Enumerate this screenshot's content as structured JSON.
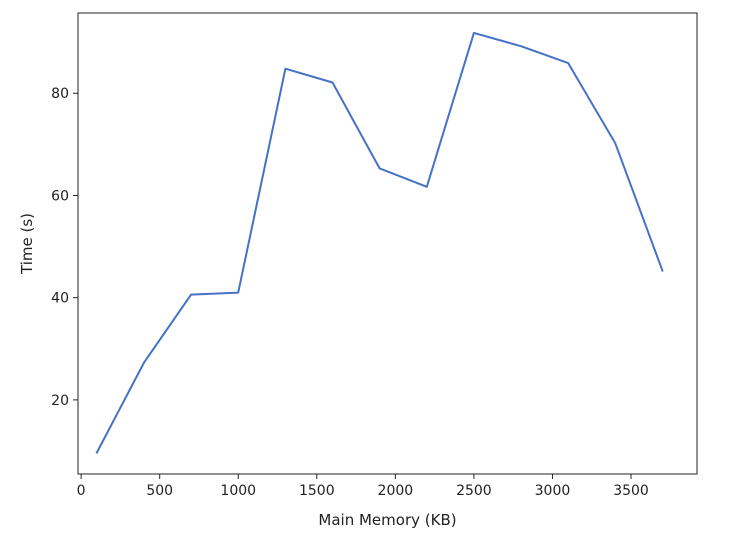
{
  "chart_data": {
    "type": "line",
    "title": "",
    "xlabel": "Main Memory (KB)",
    "ylabel": "Time (s)",
    "xlim": [
      -20,
      3920
    ],
    "ylim": [
      5.5,
      95.7
    ],
    "xticks": [
      0,
      500,
      1000,
      1500,
      2000,
      2500,
      3000,
      3500
    ],
    "yticks": [
      20,
      40,
      60,
      80
    ],
    "grid": false,
    "line_color": "#4472C4",
    "series": [
      {
        "x": [
          100,
          400,
          700,
          1000,
          1300,
          1600,
          1900,
          2200,
          2500,
          2800,
          3100,
          3400,
          3700
        ],
        "values": [
          9.7,
          27.3,
          40.6,
          41.0,
          84.8,
          82.1,
          65.3,
          61.7,
          91.8,
          89.2,
          85.9,
          70.2,
          45.3
        ]
      }
    ]
  }
}
